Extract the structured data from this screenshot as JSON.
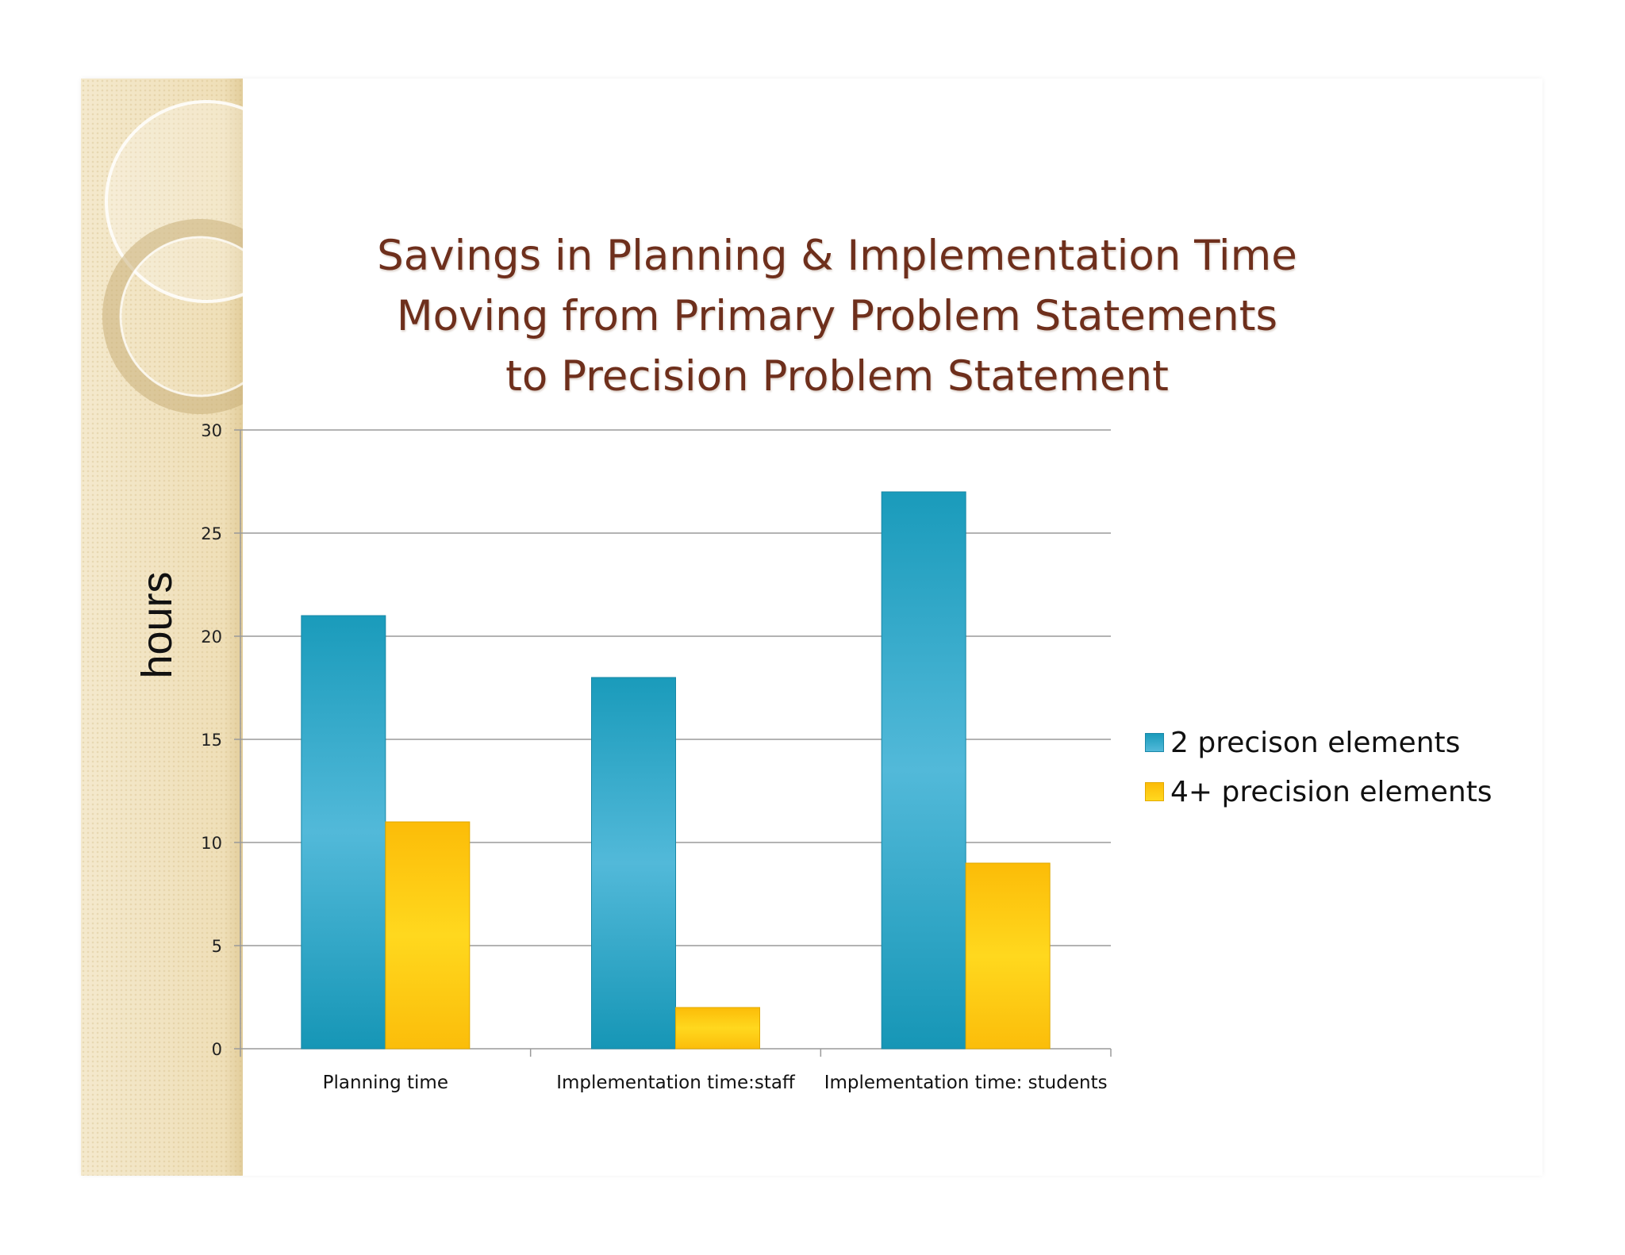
{
  "chart_data": {
    "type": "bar",
    "title_lines": [
      "Savings in Planning & Implementation Time",
      "Moving from Primary Problem Statements",
      "to Precision Problem Statement"
    ],
    "xlabel": "",
    "ylabel": "hours",
    "ylim": [
      0,
      30
    ],
    "yticks": [
      0,
      5,
      10,
      15,
      20,
      25,
      30
    ],
    "categories": [
      "Planning time",
      "Implementation time:staff",
      "Implementation time: students"
    ],
    "series": [
      {
        "name": "2 precison elements",
        "values": [
          21,
          18,
          27
        ],
        "color": "#2fa8c9"
      },
      {
        "name": "4+ precision elements",
        "values": [
          11,
          2,
          9
        ],
        "color": "#fcc40c"
      }
    ],
    "grid": true,
    "legend_position": "right"
  }
}
